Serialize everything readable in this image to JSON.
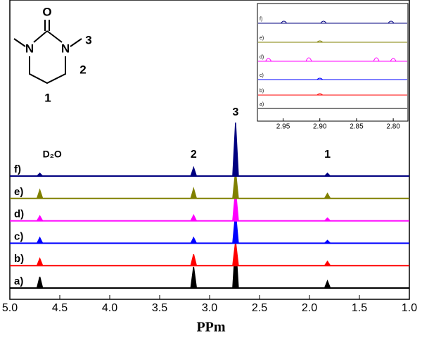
{
  "chart_data": [
    {
      "type": "spectra",
      "x_label": "PPm",
      "xlim": [
        5.0,
        1.0
      ],
      "xticks": [
        {
          "value": 5.0,
          "label": "5.0"
        },
        4.5,
        {
          "value": 4.0,
          "label": "4.0"
        },
        3.5,
        {
          "value": 3.0,
          "label": "3.0"
        },
        2.5,
        {
          "value": 2.0,
          "label": "2.0"
        },
        1.5,
        {
          "value": 1.0,
          "label": "1.0"
        }
      ],
      "x": [
        4.7,
        3.16,
        2.74,
        1.82
      ],
      "annotations": [
        "D₂O",
        "2",
        "3",
        "1"
      ],
      "series": [
        {
          "name": "a)",
          "color": "#000000",
          "values": [
            16,
            30,
            64,
            10
          ]
        },
        {
          "name": "b)",
          "color": "#ff0000",
          "values": [
            10,
            16,
            34,
            6
          ]
        },
        {
          "name": "c)",
          "color": "#0000ff",
          "values": [
            8,
            8,
            43,
            4
          ]
        },
        {
          "name": "d)",
          "color": "#ff00ff",
          "values": [
            7,
            8,
            44,
            4
          ]
        },
        {
          "name": "e)",
          "color": "#808000",
          "values": [
            12,
            14,
            39,
            7
          ]
        },
        {
          "name": "f)",
          "color": "#000080",
          "values": [
            4,
            12,
            76,
            4
          ]
        }
      ]
    },
    {
      "type": "inset-spectra",
      "xlim": [
        2.985,
        2.78
      ],
      "xticks": [
        2.95,
        {
          "value": 2.9,
          "label": "2.90"
        },
        2.85,
        {
          "value": 2.8,
          "label": "2.80"
        }
      ],
      "series": [
        {
          "name": "a)",
          "color": "#000000",
          "x": [],
          "values": []
        },
        {
          "name": "b)",
          "color": "#ff0000",
          "x": [
            2.9
          ],
          "values": [
            2
          ]
        },
        {
          "name": "c)",
          "color": "#0000ff",
          "x": [
            2.9
          ],
          "values": [
            2
          ]
        },
        {
          "name": "d)",
          "color": "#ff00ff",
          "x": [
            2.97,
            2.915,
            2.823,
            2.8
          ],
          "values": [
            4,
            5,
            5,
            4
          ]
        },
        {
          "name": "e)",
          "color": "#808000",
          "x": [
            2.9
          ],
          "values": [
            2
          ]
        },
        {
          "name": "f)",
          "color": "#000080",
          "x": [
            2.949,
            2.895,
            2.803
          ],
          "values": [
            3,
            3,
            3
          ]
        }
      ]
    }
  ],
  "molecule": {
    "atoms": [
      "O",
      "N",
      "N"
    ],
    "labels": [
      "3",
      "2",
      "1"
    ]
  }
}
